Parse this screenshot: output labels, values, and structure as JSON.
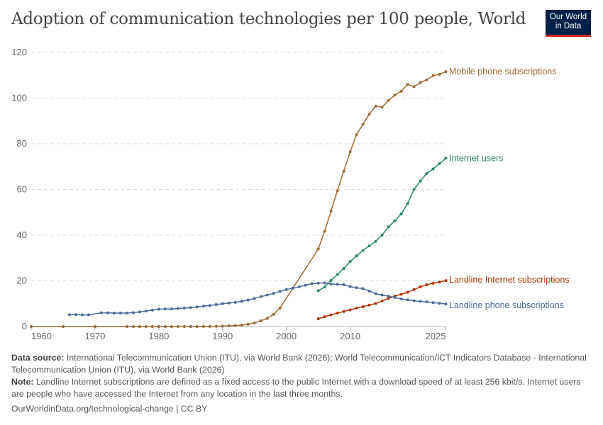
{
  "title": "Adoption of communication technologies per 100 people, World",
  "logo": {
    "line1": "Our World",
    "line2": "in Data"
  },
  "chart_data": {
    "type": "line",
    "title": "Adoption of communication technologies per 100 people, World",
    "ylim": [
      0,
      120
    ],
    "xlim": [
      1960,
      2025
    ],
    "yticks": [
      0,
      20,
      40,
      60,
      80,
      100,
      120
    ],
    "xticks": [
      1960,
      1970,
      1980,
      1990,
      2000,
      2010,
      2025
    ],
    "grid": "horizontal dashed",
    "legend": "line-end labels",
    "series": [
      {
        "name": "Mobile phone subscriptions",
        "color": "#9a6a35",
        "x": [
          1960,
          1965,
          1970,
          1975,
          1976,
          1977,
          1978,
          1979,
          1980,
          1981,
          1982,
          1983,
          1984,
          1985,
          1986,
          1987,
          1988,
          1989,
          1990,
          1991,
          1992,
          1993,
          1994,
          1995,
          1996,
          1997,
          1998,
          1999,
          2005,
          2006,
          2007,
          2008,
          2009,
          2010,
          2011,
          2012,
          2013,
          2014,
          2015,
          2016,
          2017,
          2018,
          2019,
          2020,
          2021,
          2022,
          2023,
          2024,
          2025
        ],
        "y": [
          0,
          0,
          0,
          0,
          0,
          0,
          0,
          0,
          0,
          0,
          0,
          0,
          0,
          0,
          0.01,
          0.02,
          0.05,
          0.1,
          0.2,
          0.3,
          0.4,
          0.6,
          1.0,
          1.6,
          2.5,
          3.6,
          5.3,
          8.1,
          34,
          41.7,
          50.5,
          59.5,
          68,
          76.5,
          84,
          88.5,
          93,
          96.5,
          96,
          99,
          101.3,
          103,
          106,
          105,
          106.8,
          108,
          109.8,
          110.4,
          111.6
        ]
      },
      {
        "name": "Internet users",
        "color": "#2c8465",
        "x": [
          2005,
          2006,
          2007,
          2008,
          2009,
          2010,
          2011,
          2012,
          2013,
          2014,
          2015,
          2016,
          2017,
          2018,
          2019,
          2020,
          2021,
          2022,
          2023,
          2024,
          2025
        ],
        "y": [
          15.7,
          17.3,
          20.2,
          22.8,
          25.4,
          28.5,
          30.9,
          33.3,
          35.3,
          37.3,
          40,
          43.6,
          46.3,
          49.3,
          53.8,
          60,
          63.7,
          67,
          69,
          71.3,
          73.7
        ]
      },
      {
        "name": "Landline Internet subscriptions",
        "color": "#b13507",
        "x": [
          2005,
          2006,
          2007,
          2008,
          2009,
          2010,
          2011,
          2012,
          2013,
          2014,
          2015,
          2016,
          2017,
          2018,
          2019,
          2020,
          2021,
          2022,
          2023,
          2024,
          2025
        ],
        "y": [
          3.4,
          4.3,
          5.1,
          5.9,
          6.6,
          7.3,
          8.1,
          8.7,
          9.4,
          10.1,
          11.2,
          12.3,
          13.3,
          14.1,
          15.0,
          16.2,
          17.4,
          18.3,
          18.9,
          19.5,
          20.1
        ]
      },
      {
        "name": "Landline phone subscriptions",
        "color": "#4c6a9c",
        "x": [
          1966,
          1967,
          1968,
          1969,
          1971,
          1972,
          1973,
          1974,
          1975,
          1976,
          1977,
          1978,
          1979,
          1980,
          1981,
          1982,
          1983,
          1984,
          1985,
          1986,
          1987,
          1988,
          1989,
          1990,
          1991,
          1992,
          1993,
          1994,
          1995,
          1996,
          1997,
          1998,
          1999,
          2000,
          2001,
          2002,
          2003,
          2004,
          2005,
          2006,
          2007,
          2008,
          2009,
          2010,
          2011,
          2012,
          2013,
          2014,
          2015,
          2016,
          2017,
          2018,
          2019,
          2020,
          2021,
          2022,
          2023,
          2024,
          2025
        ],
        "y": [
          5.2,
          5.2,
          5.1,
          5.1,
          6.0,
          6.0,
          5.9,
          5.9,
          5.9,
          6.1,
          6.4,
          6.8,
          7.2,
          7.6,
          7.7,
          7.7,
          7.9,
          8.1,
          8.3,
          8.6,
          8.9,
          9.2,
          9.6,
          10.0,
          10.3,
          10.6,
          11.0,
          11.6,
          12.3,
          13.1,
          13.8,
          14.5,
          15.4,
          16.2,
          16.8,
          17.4,
          18.1,
          18.8,
          19.0,
          19.1,
          18.6,
          18.5,
          18.3,
          17.5,
          17.0,
          16.6,
          15.6,
          14.4,
          13.8,
          13.3,
          12.7,
          12.1,
          11.7,
          11.3,
          11.0,
          10.8,
          10.5,
          10.2,
          9.9
        ]
      }
    ]
  },
  "footer": {
    "source_label": "Data source:",
    "source": "International Telecommunication Union (ITU), via World Bank (2026); World Telecommunication/ICT Indicators Database - International Telecommunication Union (ITU), via World Bank (2026)",
    "note_label": "Note:",
    "note": "Landline Internet subscriptions are defined as a fixed access to the public Internet with a download speed of at least 256 kbit/s. Internet users are people who have accessed the Internet from any location in the last three months.",
    "credit": "OurWorldinData.org/technological-change | CC BY"
  }
}
